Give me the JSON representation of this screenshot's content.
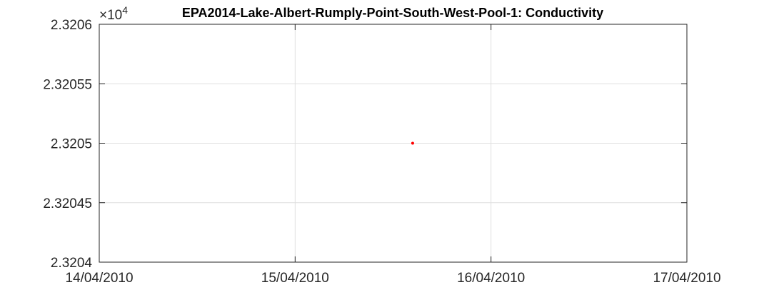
{
  "chart_data": {
    "type": "scatter",
    "title": "EPA2014-Lake-Albert-Rumply-Point-South-West-Pool-1: Conductivity",
    "xlabel": "",
    "ylabel": "",
    "y_exponent_base": "×10",
    "y_exponent_power": "4",
    "x_tick_labels": [
      "14/04/2010",
      "15/04/2010",
      "16/04/2010",
      "17/04/2010"
    ],
    "x_range_days": [
      0,
      3
    ],
    "y_tick_labels": [
      "2.3206",
      "2.32055",
      "2.3205",
      "2.32045",
      "2.3204"
    ],
    "y_ticks": [
      2.3206,
      2.32055,
      2.3205,
      2.32045,
      2.3204
    ],
    "ylim": [
      2.3204,
      2.3206
    ],
    "grid": true,
    "series": [
      {
        "color": "#ff0000",
        "points": [
          {
            "x_day": 1.6,
            "y": 2.3205
          }
        ]
      }
    ]
  }
}
